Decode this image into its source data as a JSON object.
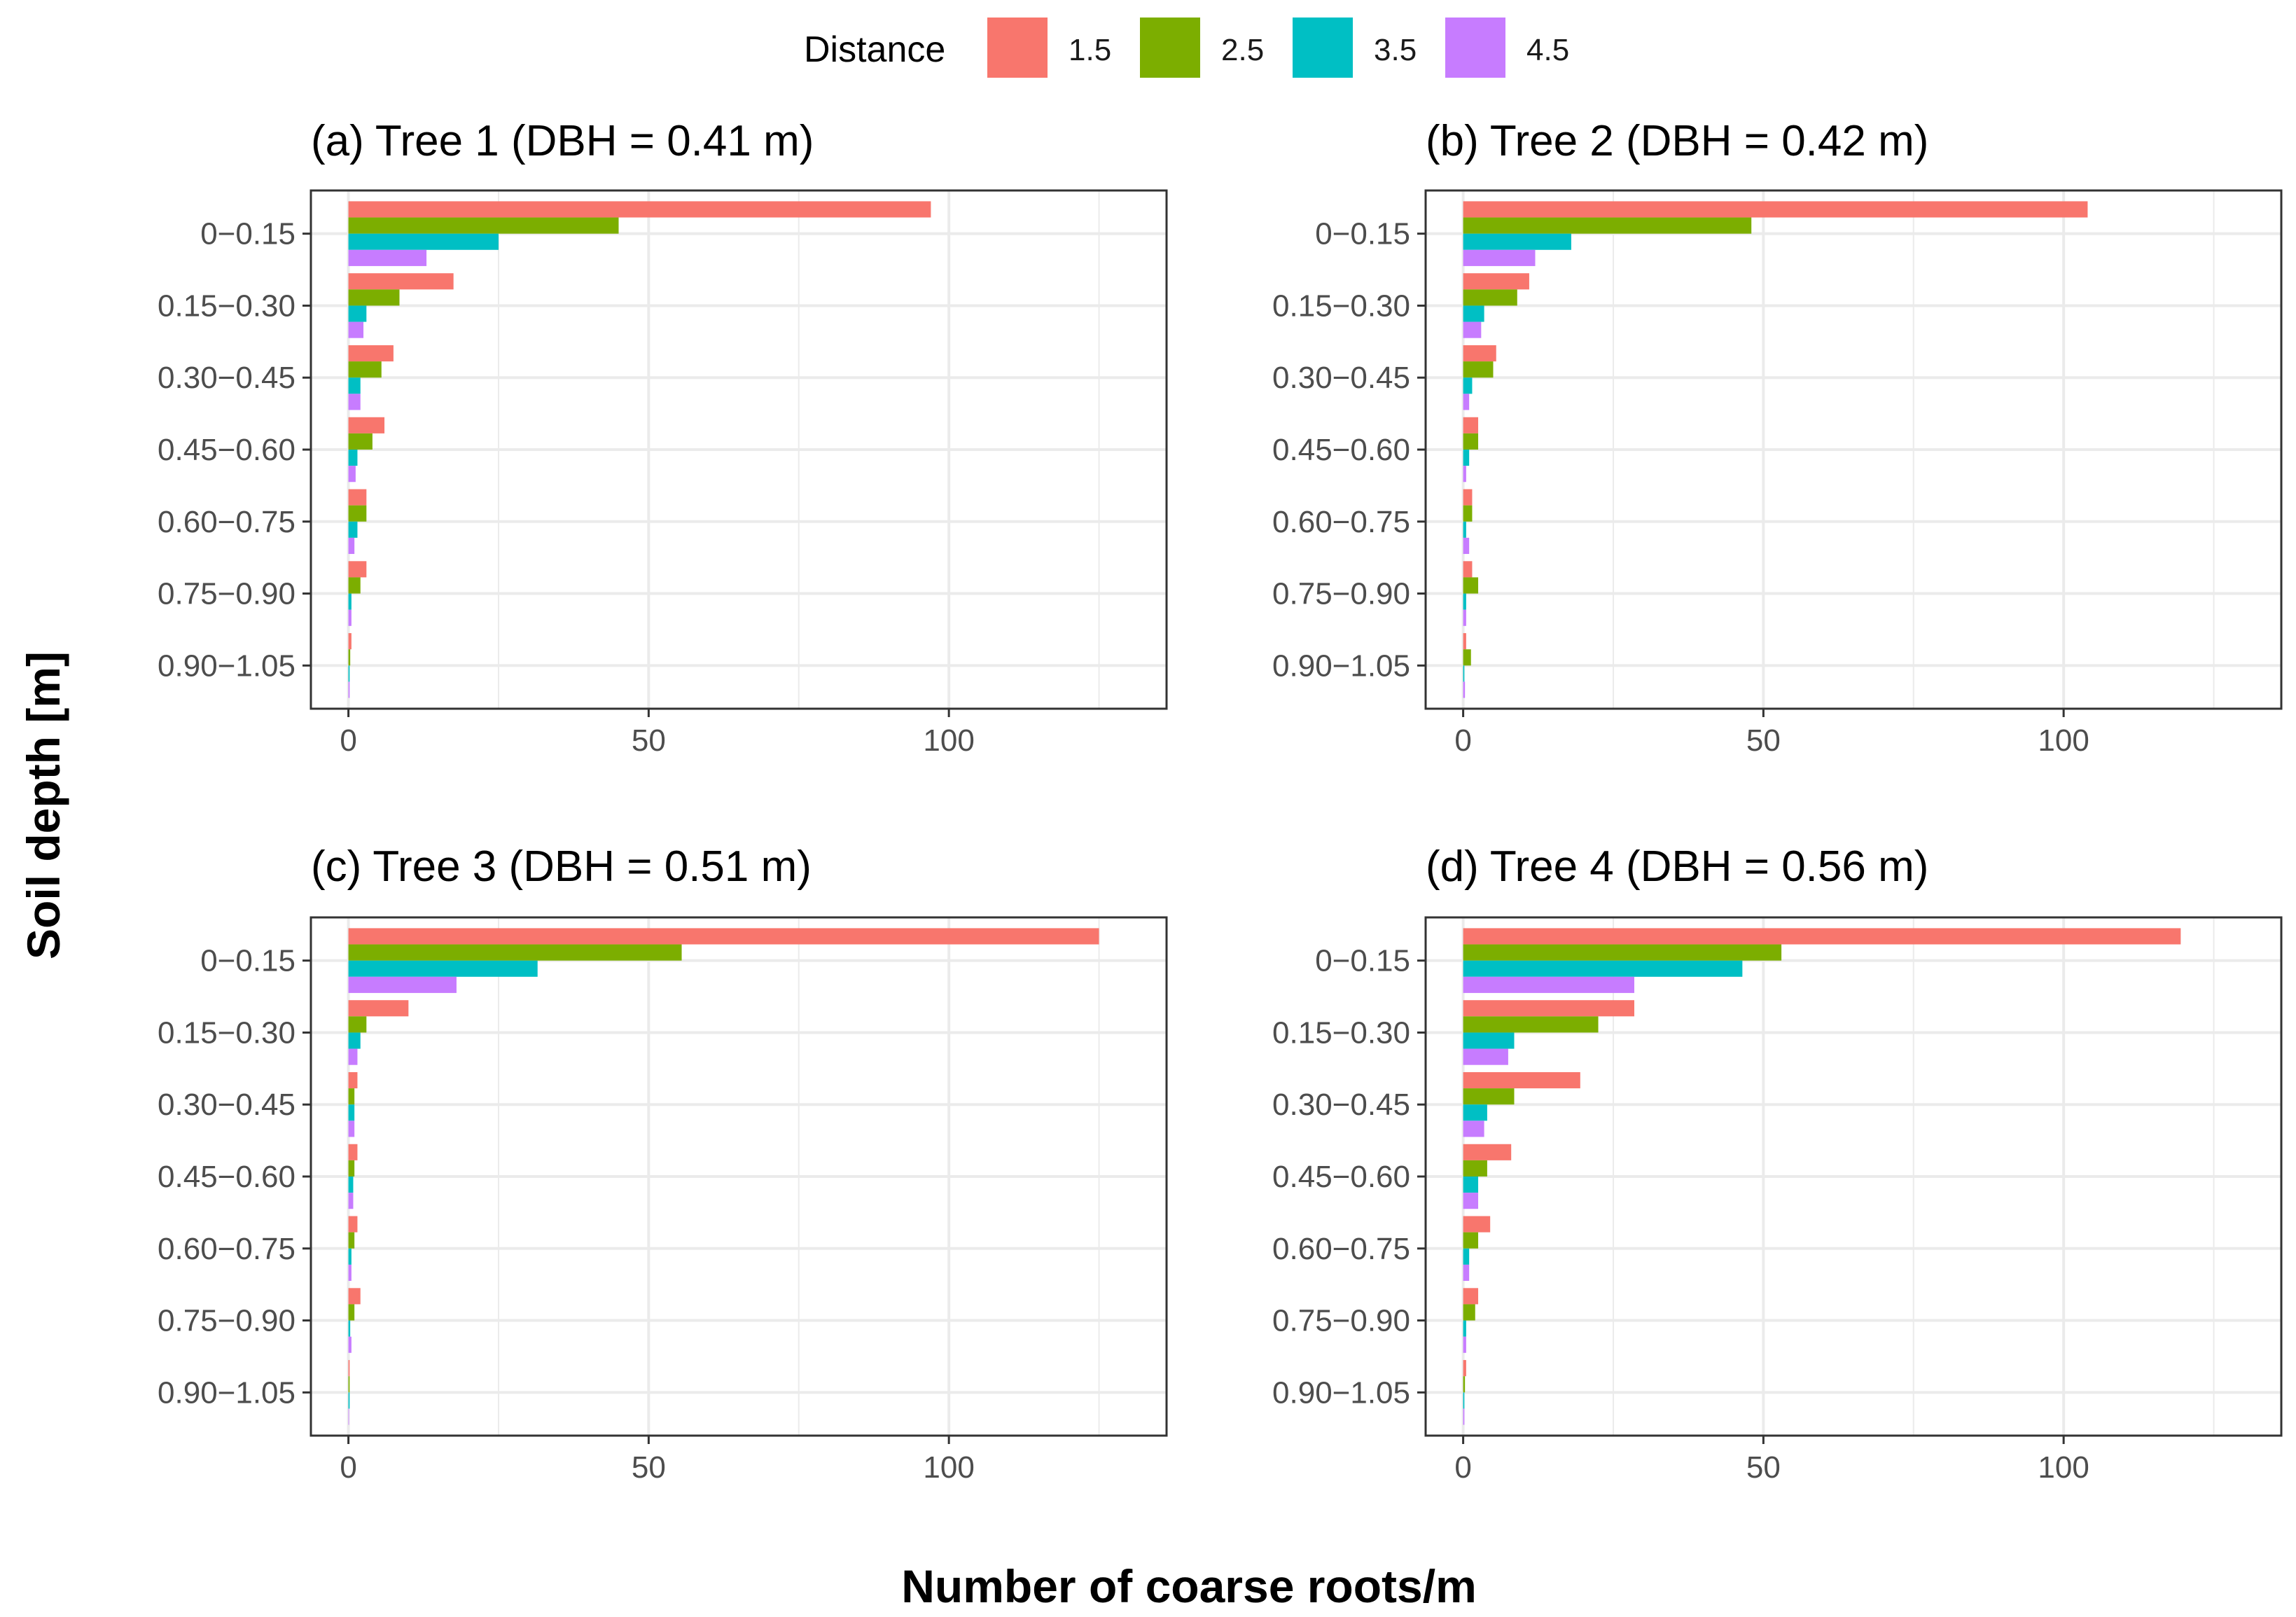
{
  "figure": {
    "ylabel": "Soil depth [m]",
    "xlabel": "Number of coarse roots/m"
  },
  "legend": {
    "title": "Distance",
    "items": [
      {
        "label": "1.5",
        "color": "#F8766D"
      },
      {
        "label": "2.5",
        "color": "#7CAE00"
      },
      {
        "label": "3.5",
        "color": "#00BFC4"
      },
      {
        "label": "4.5",
        "color": "#C77CFF"
      }
    ]
  },
  "chart_data": [
    {
      "type": "bar",
      "orientation": "horizontal",
      "title": "(a) Tree 1 (DBH = 0.41 m)",
      "categories": [
        "0−0.15",
        "0.15−0.30",
        "0.30−0.45",
        "0.45−0.60",
        "0.60−0.75",
        "0.75−0.90",
        "0.90−1.05"
      ],
      "xlim": [
        -6.25,
        136.25
      ],
      "xticks": [
        "0",
        "50",
        "100"
      ],
      "series": [
        {
          "name": "1.5",
          "values": [
            97,
            17.5,
            7.5,
            6,
            3,
            3,
            0.5
          ]
        },
        {
          "name": "2.5",
          "values": [
            45,
            8.5,
            5.5,
            4,
            3,
            2,
            0.3
          ]
        },
        {
          "name": "3.5",
          "values": [
            25,
            3,
            2,
            1.5,
            1.5,
            0.5,
            0.2
          ]
        },
        {
          "name": "4.5",
          "values": [
            13,
            2.5,
            2,
            1.2,
            1,
            0.5,
            0.2
          ]
        }
      ]
    },
    {
      "type": "bar",
      "orientation": "horizontal",
      "title": "(b) Tree 2 (DBH = 0.42 m)",
      "categories": [
        "0−0.15",
        "0.15−0.30",
        "0.30−0.45",
        "0.45−0.60",
        "0.60−0.75",
        "0.75−0.90",
        "0.90−1.05"
      ],
      "xlim": [
        -6.25,
        136.25
      ],
      "xticks": [
        "0",
        "50",
        "100"
      ],
      "series": [
        {
          "name": "1.5",
          "values": [
            104,
            11,
            5.5,
            2.5,
            1.5,
            1.5,
            0.5
          ]
        },
        {
          "name": "2.5",
          "values": [
            48,
            9,
            5,
            2.5,
            1.5,
            2.5,
            1.3
          ]
        },
        {
          "name": "3.5",
          "values": [
            18,
            3.5,
            1.5,
            1,
            0.5,
            0.5,
            0.2
          ]
        },
        {
          "name": "4.5",
          "values": [
            12,
            3,
            1,
            0.5,
            1,
            0.5,
            0.3
          ]
        }
      ]
    },
    {
      "type": "bar",
      "orientation": "horizontal",
      "title": "(c) Tree 3 (DBH = 0.51 m)",
      "categories": [
        "0−0.15",
        "0.15−0.30",
        "0.30−0.45",
        "0.45−0.60",
        "0.60−0.75",
        "0.75−0.90",
        "0.90−1.05"
      ],
      "xlim": [
        -6.25,
        136.25
      ],
      "xticks": [
        "0",
        "50",
        "100"
      ],
      "series": [
        {
          "name": "1.5",
          "values": [
            125,
            10,
            1.5,
            1.5,
            1.5,
            2,
            0.2
          ]
        },
        {
          "name": "2.5",
          "values": [
            55.5,
            3,
            1,
            1,
            1,
            1,
            0.2
          ]
        },
        {
          "name": "3.5",
          "values": [
            31.5,
            2,
            1,
            0.8,
            0.5,
            0.3,
            0.2
          ]
        },
        {
          "name": "4.5",
          "values": [
            18,
            1.5,
            1,
            0.8,
            0.5,
            0.5,
            0.1
          ]
        }
      ]
    },
    {
      "type": "bar",
      "orientation": "horizontal",
      "title": "(d) Tree 4 (DBH = 0.56 m)",
      "categories": [
        "0−0.15",
        "0.15−0.30",
        "0.30−0.45",
        "0.45−0.60",
        "0.60−0.75",
        "0.75−0.90",
        "0.90−1.05"
      ],
      "xlim": [
        -6.25,
        136.25
      ],
      "xticks": [
        "0",
        "50",
        "100"
      ],
      "series": [
        {
          "name": "1.5",
          "values": [
            119.5,
            28.5,
            19.5,
            8,
            4.5,
            2.5,
            0.5
          ]
        },
        {
          "name": "2.5",
          "values": [
            53,
            22.5,
            8.5,
            4,
            2.5,
            2,
            0.3
          ]
        },
        {
          "name": "3.5",
          "values": [
            46.5,
            8.5,
            4,
            2.5,
            1,
            0.5,
            0.2
          ]
        },
        {
          "name": "4.5",
          "values": [
            28.5,
            7.5,
            3.5,
            2.5,
            1,
            0.5,
            0.2
          ]
        }
      ]
    }
  ]
}
